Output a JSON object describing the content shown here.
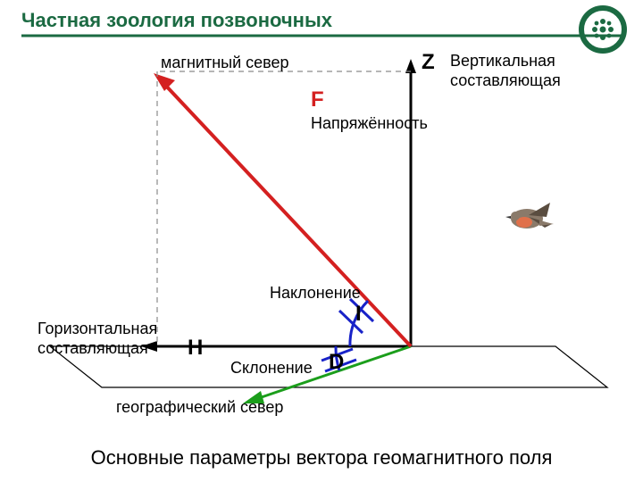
{
  "title": {
    "text": "Частная зоология позвоночных",
    "color": "#1b6a42",
    "underline_color": "#1b6a42",
    "fontsize": 22
  },
  "logo": {
    "bg": "#1b6a42",
    "inner_bg": "#ffffff",
    "inner_border": "#1b6a42"
  },
  "caption": {
    "text": "Основные параметры вектора геомагнитного поля",
    "color": "#000000",
    "fontsize": 22
  },
  "diagram": {
    "background": "#ffffff",
    "dash_color": "#8a8a8a",
    "dash_pattern": "6 5",
    "plane_color": "#000000",
    "axis": {
      "z_color": "#000000",
      "h_color": "#000000",
      "north_color": "#1b9e1b",
      "f_color": "#d42020",
      "i_arc_color": "#1822c8",
      "d_arc_color": "#1822c8",
      "linewidth_axis": 3,
      "linewidth_f": 4,
      "linewidth_arc": 3
    },
    "letters": {
      "Z": "Z",
      "F": "F",
      "H": "H",
      "I": "I",
      "D": "D",
      "fontsize": 24,
      "color_red": "#d42020",
      "color_black": "#000000"
    },
    "labels": {
      "magnetic_north": "магнитный север",
      "vertical_component": "Вертикальная составляющая",
      "intensity": "Напряжённость",
      "inclination": "Наклонение",
      "horizontal_component": "Горизонтальная составляющая",
      "declination": "Склонение",
      "geographic_north": "географический север",
      "fontsize": 18,
      "fontsize_small": 17,
      "color": "#000000"
    },
    "bird": {
      "body": "#8a7a6a",
      "breast": "#e0704a",
      "wing": "#5a4d40"
    }
  }
}
